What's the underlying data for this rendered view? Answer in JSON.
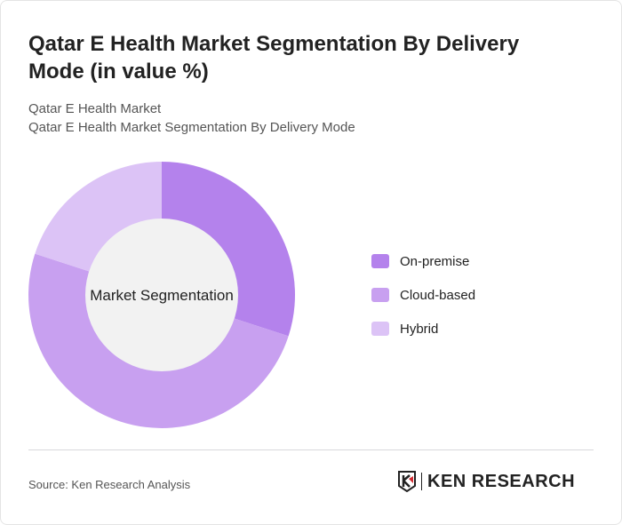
{
  "title": "Qatar E Health Market Segmentation By Delivery Mode (in value %)",
  "subtitle1": "Qatar E Health Market",
  "subtitle2": "Qatar E Health Market Segmentation By Delivery Mode",
  "source": "Source: Ken Research Analysis",
  "logo_text": "KEN RESEARCH",
  "chart_data": {
    "type": "pie",
    "variant": "donut",
    "center_label": "Market Segmentation",
    "categories": [
      "On-premise",
      "Cloud-based",
      "Hybrid"
    ],
    "values": [
      30,
      50,
      20
    ],
    "colors": [
      "#b482ec",
      "#c8a0f0",
      "#dcc3f6"
    ],
    "legend_position": "right"
  }
}
